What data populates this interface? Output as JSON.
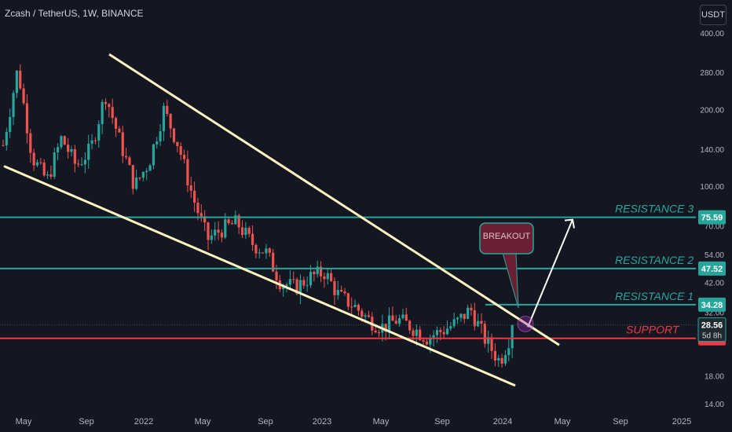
{
  "header": {
    "title": "Zcash / TetherUS, 1W, BINANCE",
    "currency_button": "USDT"
  },
  "colors": {
    "background": "#141722",
    "bull_candle": "#26a69a",
    "bear_candle": "#ef5350",
    "resistance_line": "#26a69a",
    "support_line": "#f23645",
    "trendline": "#fff5c2",
    "breakout_box": "#6b1f33",
    "axis_text": "#b2b5be"
  },
  "chart_data": {
    "type": "candlestick",
    "scale": "log",
    "ylim": [
      14,
      400
    ],
    "y_ticks": [
      "400.00",
      "280.00",
      "200.00",
      "140.00",
      "100.00",
      "70.00",
      "54.00",
      "42.00",
      "32.00",
      "18.00",
      "14.00"
    ],
    "x_ticks": [
      "May",
      "Sep",
      "2022",
      "May",
      "Sep",
      "2023",
      "May",
      "Sep",
      "2024",
      "May",
      "Sep",
      "2025"
    ],
    "levels": [
      {
        "label": "RESISTANCE 3",
        "price": "75.59",
        "value": 75.59,
        "kind": "resistance"
      },
      {
        "label": "RESISTANCE 2",
        "price": "47.52",
        "value": 47.52,
        "kind": "resistance"
      },
      {
        "label": "RESISTANCE 1",
        "price": "34.28",
        "value": 34.28,
        "kind": "resistance"
      },
      {
        "label": "SUPPORT",
        "price": "25.29",
        "value": 25.29,
        "kind": "support"
      }
    ],
    "last_price": {
      "price": "28.56",
      "countdown": "5d 8h"
    },
    "annotation": "BREAKOUT",
    "close_path": [
      {
        "x": "2021-04",
        "y": 145
      },
      {
        "x": "2021-05",
        "y": 290
      },
      {
        "x": "2021-06",
        "y": 130
      },
      {
        "x": "2021-07",
        "y": 105
      },
      {
        "x": "2021-08",
        "y": 155
      },
      {
        "x": "2021-09",
        "y": 120
      },
      {
        "x": "2021-10",
        "y": 140
      },
      {
        "x": "2021-11",
        "y": 230
      },
      {
        "x": "2021-12",
        "y": 150
      },
      {
        "x": "2022-01",
        "y": 100
      },
      {
        "x": "2022-02",
        "y": 125
      },
      {
        "x": "2022-03",
        "y": 200
      },
      {
        "x": "2022-04",
        "y": 145
      },
      {
        "x": "2022-05",
        "y": 90
      },
      {
        "x": "2022-06",
        "y": 62
      },
      {
        "x": "2022-07",
        "y": 68
      },
      {
        "x": "2022-08",
        "y": 72
      },
      {
        "x": "2022-09",
        "y": 60
      },
      {
        "x": "2022-10",
        "y": 55
      },
      {
        "x": "2022-11",
        "y": 42
      },
      {
        "x": "2022-12",
        "y": 40
      },
      {
        "x": "2023-01",
        "y": 44
      },
      {
        "x": "2023-02",
        "y": 46
      },
      {
        "x": "2023-03",
        "y": 37
      },
      {
        "x": "2023-04",
        "y": 34
      },
      {
        "x": "2023-05",
        "y": 30
      },
      {
        "x": "2023-06",
        "y": 28
      },
      {
        "x": "2023-07",
        "y": 30
      },
      {
        "x": "2023-08",
        "y": 28
      },
      {
        "x": "2023-09",
        "y": 25.5
      },
      {
        "x": "2023-10",
        "y": 27
      },
      {
        "x": "2023-11",
        "y": 29
      },
      {
        "x": "2023-12",
        "y": 33
      },
      {
        "x": "2024-01",
        "y": 25
      },
      {
        "x": "2024-02",
        "y": 20.5
      },
      {
        "x": "2024-03",
        "y": 28.56
      }
    ]
  }
}
